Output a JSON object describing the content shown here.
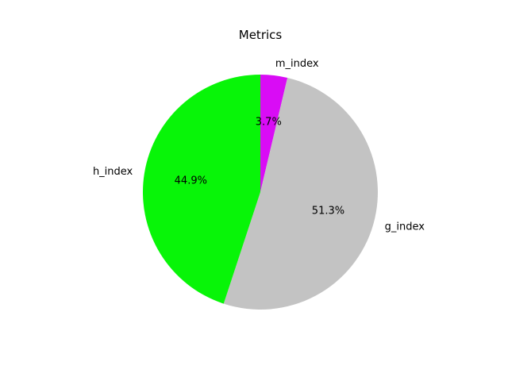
{
  "chart_data": {
    "type": "pie",
    "title": "Metrics",
    "slices": [
      {
        "label": "m_index",
        "value": 3.7,
        "pct_label": "3.7%",
        "color": "#d90cf5"
      },
      {
        "label": "g_index",
        "value": 51.3,
        "pct_label": "51.3%",
        "color": "#c3c3c3"
      },
      {
        "label": "h_index",
        "value": 44.9,
        "pct_label": "44.9%",
        "color": "#08f508"
      }
    ],
    "start_angle_deg": 90,
    "direction": "clockwise",
    "legend": "none"
  }
}
